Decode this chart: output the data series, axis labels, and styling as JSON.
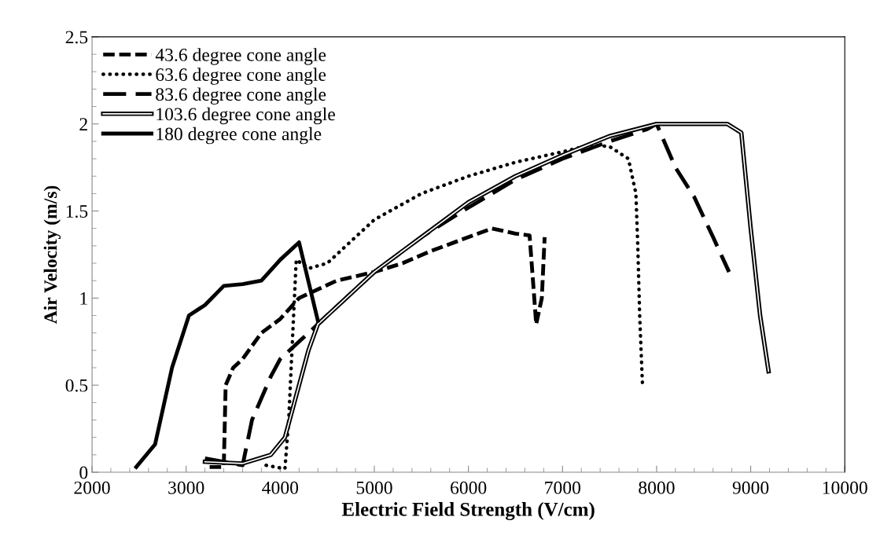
{
  "chart_data": {
    "type": "line",
    "xlabel": "Electric Field Strength (V/cm)",
    "ylabel": "Air Velocity (m/s)",
    "xlim": [
      2000,
      10000
    ],
    "xticks": [
      2000,
      3000,
      4000,
      5000,
      6000,
      7000,
      8000,
      9000,
      10000
    ],
    "ylim": [
      0,
      2.5
    ],
    "yticks": [
      0,
      0.5,
      1,
      1.5,
      2,
      2.5
    ],
    "grid": false,
    "legend": "top left",
    "marker": "none",
    "series": [
      {
        "name": "43.6 degree cone angle",
        "color": "#000000",
        "line_style": "dashed",
        "x": [
          3250,
          3400,
          3420,
          3500,
          3600,
          3800,
          4000,
          4200,
          4400,
          4600,
          5000,
          5300,
          5600,
          6000,
          6250,
          6500,
          6650,
          6700,
          6720,
          6780,
          6810
        ],
        "values": [
          0.03,
          0.03,
          0.5,
          0.6,
          0.65,
          0.8,
          0.88,
          1.0,
          1.05,
          1.1,
          1.15,
          1.2,
          1.27,
          1.35,
          1.4,
          1.37,
          1.36,
          1.0,
          0.85,
          1.0,
          1.35
        ]
      },
      {
        "name": "63.6 degree cone angle",
        "color": "#000000",
        "line_style": "dotted",
        "x": [
          3850,
          4050,
          4090,
          4170,
          4300,
          4500,
          4800,
          5000,
          5500,
          6000,
          6500,
          7000,
          7300,
          7500,
          7700,
          7780,
          7800,
          7820,
          7850
        ],
        "values": [
          0.04,
          0.02,
          0.3,
          1.22,
          1.17,
          1.2,
          1.35,
          1.45,
          1.6,
          1.7,
          1.78,
          1.84,
          1.88,
          1.87,
          1.8,
          1.6,
          1.3,
          0.9,
          0.5
        ]
      },
      {
        "name": "83.6 degree cone angle",
        "color": "#000000",
        "line_style": "long dashed",
        "x": [
          3200,
          3600,
          3700,
          3900,
          4000,
          4200,
          4400,
          4700,
          5000,
          5500,
          6000,
          6500,
          7000,
          7500,
          7900,
          8000,
          8200,
          8400,
          8600,
          8770
        ],
        "values": [
          0.08,
          0.04,
          0.3,
          0.55,
          0.65,
          0.75,
          0.85,
          1.0,
          1.15,
          1.35,
          1.52,
          1.68,
          1.8,
          1.9,
          1.97,
          2.0,
          1.75,
          1.58,
          1.35,
          1.15
        ]
      },
      {
        "name": "103.6 degree cone angle",
        "color": "#000000",
        "x": [
          3200,
          3600,
          3900,
          4050,
          4150,
          4300,
          4400,
          4500,
          5000,
          5500,
          6000,
          6500,
          7000,
          7500,
          8000,
          8280,
          8750,
          8900,
          9000,
          9100,
          9190
        ],
        "values": [
          0.06,
          0.05,
          0.1,
          0.2,
          0.4,
          0.7,
          0.85,
          0.9,
          1.15,
          1.35,
          1.55,
          1.7,
          1.82,
          1.93,
          2.0,
          2.0,
          2.0,
          1.95,
          1.4,
          0.9,
          0.58
        ]
      },
      {
        "name": "180 degree cone angle",
        "color": "#000000",
        "line_style": "solid",
        "x": [
          2470,
          2670,
          2850,
          3030,
          3200,
          3400,
          3600,
          3800,
          4000,
          4200,
          4400
        ],
        "values": [
          0.03,
          0.16,
          0.6,
          0.9,
          0.96,
          1.07,
          1.08,
          1.1,
          1.22,
          1.32,
          0.87
        ]
      }
    ]
  }
}
